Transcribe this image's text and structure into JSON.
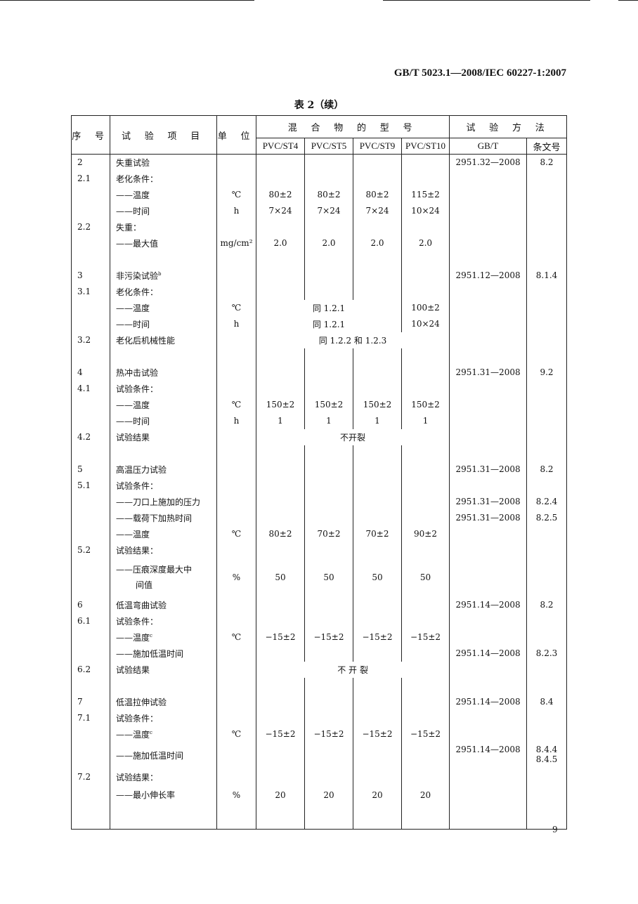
{
  "header": {
    "standard_number": "GB/T 5023.1—2008/IEC 60227-1:2007"
  },
  "caption": "表 2（续）",
  "table": {
    "headers": {
      "no": "序 号",
      "item": "试 验 项 目",
      "unit": "单 位",
      "mix_group": "混 合 物 的 型 号",
      "method_group": "试 验 方 法",
      "mix": [
        "PVC/ST4",
        "PVC/ST5",
        "PVC/ST9",
        "PVC/ST10"
      ],
      "gbt": "GB/T",
      "clause": "条文号"
    },
    "rows": [
      {
        "no": "2",
        "item": "失重试验",
        "gbt": "2951.32—2008",
        "clause": "8.2"
      },
      {
        "no": "2.1",
        "item": "老化条件："
      },
      {
        "item": "——温度",
        "unit": "℃",
        "mix": [
          "80±2",
          "80±2",
          "80±2",
          "115±2"
        ]
      },
      {
        "item": "——时间",
        "unit": "h",
        "mix": [
          "7×24",
          "7×24",
          "7×24",
          "10×24"
        ]
      },
      {
        "no": "2.2",
        "item": "失重："
      },
      {
        "item": "——最大值",
        "unit": "mg/cm²",
        "mix": [
          "2.0",
          "2.0",
          "2.0",
          "2.0"
        ]
      },
      {},
      {
        "no": "3",
        "item": "非污染试验",
        "sup": "b",
        "gbt": "2951.12—2008",
        "clause": "8.1.4"
      },
      {
        "no": "3.1",
        "item": "老化条件："
      },
      {
        "item": "——温度",
        "unit": "℃",
        "span3": "同 1.2.1",
        "mix4": "100±2"
      },
      {
        "item": "——时间",
        "unit": "h",
        "span3": "同 1.2.1",
        "mix4": "10×24"
      },
      {
        "no": "3.2",
        "item": "老化后机械性能",
        "span": "同 1.2.2 和 1.2.3"
      },
      {},
      {
        "no": "4",
        "item": "热冲击试验",
        "gbt": "2951.31—2008",
        "clause": "9.2"
      },
      {
        "no": "4.1",
        "item": "试验条件："
      },
      {
        "item": "——温度",
        "unit": "℃",
        "mix": [
          "150±2",
          "150±2",
          "150±2",
          "150±2"
        ]
      },
      {
        "item": "——时间",
        "unit": "h",
        "mix": [
          "1",
          "1",
          "1",
          "1"
        ]
      },
      {
        "no": "4.2",
        "item": "试验结果",
        "span": "不开裂"
      },
      {},
      {
        "no": "5",
        "item": "高温压力试验",
        "gbt": "2951.31—2008",
        "clause": "8.2"
      },
      {
        "no": "5.1",
        "item": "试验条件："
      },
      {
        "item": "——刀口上施加的压力",
        "gbt": "2951.31—2008",
        "clause": "8.2.4"
      },
      {
        "item": "——载荷下加热时间",
        "gbt": "2951.31—2008",
        "clause": "8.2.5"
      },
      {
        "item": "——温度",
        "unit": "℃",
        "mix": [
          "80±2",
          "70±2",
          "70±2",
          "90±2"
        ]
      },
      {
        "no": "5.2",
        "item": "试验结果："
      },
      {
        "item": "——压痕深度最大中",
        "item2": "间值",
        "unit": "%",
        "mix": [
          "50",
          "50",
          "50",
          "50"
        ]
      },
      {
        "no": "6",
        "item": "低温弯曲试验",
        "gbt": "2951.14—2008",
        "clause": "8.2"
      },
      {
        "no": "6.1",
        "item": "试验条件："
      },
      {
        "item": "——温度",
        "sup": "c",
        "unit": "℃",
        "mix": [
          "−15±2",
          "−15±2",
          "−15±2",
          "−15±2"
        ]
      },
      {
        "item": "——施加低温时间",
        "gbt": "2951.14—2008",
        "clause": "8.2.3"
      },
      {
        "no": "6.2",
        "item": "试验结果",
        "span": "不 开 裂"
      },
      {},
      {
        "no": "7",
        "item": "低温拉伸试验",
        "gbt": "2951.14—2008",
        "clause": "8.4"
      },
      {
        "no": "7.1",
        "item": "试验条件："
      },
      {
        "item": "——温度",
        "sup": "c",
        "unit": "℃",
        "mix": [
          "−15±2",
          "−15±2",
          "−15±2",
          "−15±2"
        ]
      },
      {
        "item": "——施加低温时间",
        "gbt": "2951.14—2008",
        "clause": "8.4.4",
        "clause2": "8.4.5"
      },
      {
        "no": "7.2",
        "item": "试验结果："
      },
      {
        "item": "——最小伸长率",
        "unit": "%",
        "mix": [
          "20",
          "20",
          "20",
          "20"
        ]
      },
      {}
    ]
  },
  "page_number": "9"
}
